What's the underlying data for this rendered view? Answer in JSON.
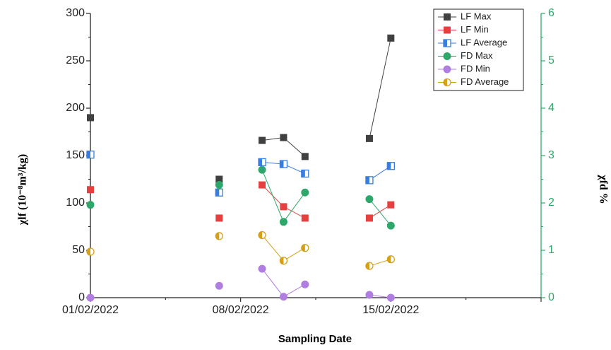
{
  "chart_data": {
    "type": "scatter",
    "xlabel": "Sampling Date",
    "ylabel_left": "χlf (10⁻⁸m³/kg)",
    "ylabel_right": "χfd %",
    "x_tick_labels": [
      "01/02/2022",
      "08/02/2022",
      "15/02/2022"
    ],
    "x_domain": [
      "01/02/2022",
      "22/02/2022"
    ],
    "ylim_left": [
      0,
      300
    ],
    "ylim_right": [
      0,
      6
    ],
    "yticks_left": [
      0,
      50,
      100,
      150,
      200,
      250,
      300
    ],
    "yticks_right": [
      0,
      1,
      2,
      3,
      4,
      5,
      6
    ],
    "legend_position": "top-right",
    "grid": false,
    "colors": {
      "right_axis": "#2ea86a"
    },
    "series": [
      {
        "name": "LF Max",
        "axis": "left",
        "color": "#404040",
        "marker": "square-filled",
        "x": [
          "01/02/2022",
          "07/02/2022",
          "09/02/2022",
          "10/02/2022",
          "11/02/2022",
          "14/02/2022",
          "15/02/2022"
        ],
        "y": [
          190,
          125,
          166,
          169,
          149,
          168,
          274
        ],
        "segments": [
          [
            2,
            3,
            4
          ],
          [
            5,
            6
          ]
        ]
      },
      {
        "name": "LF Min",
        "axis": "left",
        "color": "#e53f3f",
        "marker": "square-filled",
        "x": [
          "01/02/2022",
          "07/02/2022",
          "09/02/2022",
          "10/02/2022",
          "11/02/2022",
          "14/02/2022",
          "15/02/2022"
        ],
        "y": [
          114,
          84,
          119,
          96,
          84,
          84,
          98
        ],
        "segments": [
          [
            2,
            3,
            4
          ],
          [
            5,
            6
          ]
        ]
      },
      {
        "name": "LF Average",
        "axis": "left",
        "color": "#3a7de0",
        "marker": "square-half",
        "x": [
          "01/02/2022",
          "07/02/2022",
          "09/02/2022",
          "10/02/2022",
          "11/02/2022",
          "14/02/2022",
          "15/02/2022"
        ],
        "y": [
          151,
          111,
          143,
          141,
          131,
          124,
          139
        ],
        "segments": [
          [
            2,
            3,
            4
          ],
          [
            5,
            6
          ]
        ]
      },
      {
        "name": "FD Max",
        "axis": "right",
        "color": "#2ea86a",
        "marker": "circle-filled",
        "x": [
          "01/02/2022",
          "07/02/2022",
          "09/02/2022",
          "10/02/2022",
          "11/02/2022",
          "14/02/2022",
          "15/02/2022"
        ],
        "y": [
          1.96,
          2.38,
          2.7,
          1.6,
          2.22,
          2.08,
          1.52
        ],
        "segments": [
          [
            2,
            3,
            4
          ],
          [
            5,
            6
          ]
        ]
      },
      {
        "name": "FD Min",
        "axis": "right",
        "color": "#b07ee0",
        "marker": "circle-filled",
        "x": [
          "01/02/2022",
          "07/02/2022",
          "09/02/2022",
          "10/02/2022",
          "11/02/2022",
          "14/02/2022",
          "15/02/2022"
        ],
        "y": [
          0.0,
          0.25,
          0.61,
          0.02,
          0.28,
          0.06,
          0.0
        ],
        "segments": [
          [
            2,
            3,
            4
          ],
          [
            5,
            6
          ]
        ]
      },
      {
        "name": "FD Average",
        "axis": "right",
        "color": "#d4a017",
        "marker": "circle-half",
        "x": [
          "01/02/2022",
          "07/02/2022",
          "09/02/2022",
          "10/02/2022",
          "11/02/2022",
          "14/02/2022",
          "15/02/2022"
        ],
        "y": [
          0.97,
          1.3,
          1.32,
          0.78,
          1.05,
          0.67,
          0.81
        ],
        "segments": [
          [
            2,
            3,
            4
          ],
          [
            5,
            6
          ]
        ]
      }
    ]
  }
}
